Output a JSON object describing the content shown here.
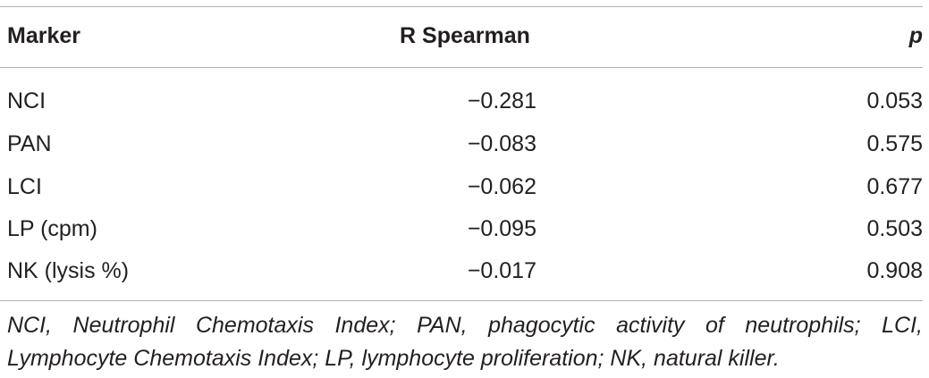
{
  "table": {
    "headers": {
      "marker": "Marker",
      "r_spearman": "R Spearman",
      "p": "p"
    },
    "rows": [
      {
        "marker": "NCI",
        "r": "−0.281",
        "p": "0.053"
      },
      {
        "marker": "PAN",
        "r": "−0.083",
        "p": "0.575"
      },
      {
        "marker": "LCI",
        "r": "−0.062",
        "p": "0.677"
      },
      {
        "marker": "LP (cpm)",
        "r": "−0.095",
        "p": "0.503"
      },
      {
        "marker": "NK (lysis %)",
        "r": "−0.017",
        "p": "0.908"
      }
    ],
    "footnote_line1": "NCI, Neutrophil Chemotaxis Index; PAN, phagocytic activity of neutrophils; LCI,",
    "footnote_line2": "Lymphocyte Chemotaxis Index; LP, lymphocyte proliferation; NK, natural killer."
  }
}
